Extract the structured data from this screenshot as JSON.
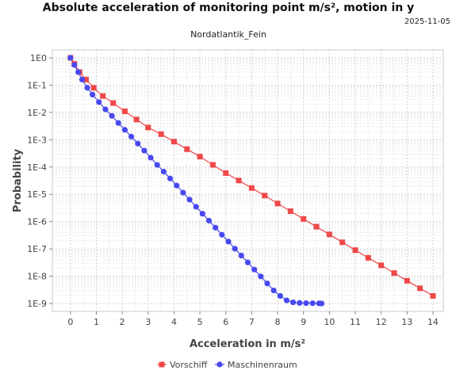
{
  "chart_data": {
    "type": "line",
    "title": "Absolute acceleration of monitoring point m/s², motion in y",
    "date": "2025-11-05",
    "subtitle": "Nordatlantik_Fein",
    "xlabel": "Acceleration in m/s²",
    "ylabel": "Probability",
    "xlim": [
      -0.7,
      14.4
    ],
    "ylim": [
      1e-09,
      1
    ],
    "yscale": "log",
    "x_ticks": [
      "0",
      "1",
      "2",
      "3",
      "4",
      "5",
      "6",
      "7",
      "8",
      "9",
      "10",
      "11",
      "12",
      "13",
      "14"
    ],
    "y_ticks": [
      "1E0",
      "1E-1",
      "1E-2",
      "1E-3",
      "1E-4",
      "1E-5",
      "1E-6",
      "1E-7",
      "1E-8",
      "1E-9"
    ],
    "grid": true,
    "legend_position": "bottom",
    "series": [
      {
        "name": "Vorschiff",
        "color": "#f04848",
        "marker": "square",
        "x": [
          0,
          0.15,
          0.35,
          0.6,
          0.9,
          1.25,
          1.65,
          2.1,
          2.55,
          3.0,
          3.5,
          4.0,
          4.5,
          5.0,
          5.5,
          6.0,
          6.5,
          7.0,
          7.5,
          8.0,
          8.5,
          9.0,
          9.5,
          10.0,
          10.5,
          11.0,
          11.5,
          12.0,
          12.5,
          13.0,
          13.5,
          14.0
        ],
        "y": [
          1.0,
          0.6,
          0.3,
          0.16,
          0.08,
          0.04,
          0.022,
          0.011,
          0.0055,
          0.0028,
          0.0016,
          0.00085,
          0.00045,
          0.00024,
          0.00012,
          6e-05,
          3.2e-05,
          1.7e-05,
          9e-06,
          4.6e-06,
          2.4e-06,
          1.25e-06,
          6.5e-07,
          3.4e-07,
          1.75e-07,
          9e-08,
          4.7e-08,
          2.5e-08,
          1.3e-08,
          6.8e-09,
          3.6e-09,
          1.9e-09
        ]
      },
      {
        "name": "Maschinenraum",
        "color": "#4848f0",
        "marker": "circle",
        "x": [
          0,
          0.15,
          0.3,
          0.45,
          0.65,
          0.85,
          1.1,
          1.35,
          1.6,
          1.85,
          2.1,
          2.35,
          2.6,
          2.85,
          3.1,
          3.35,
          3.6,
          3.85,
          4.1,
          4.35,
          4.6,
          4.85,
          5.1,
          5.35,
          5.6,
          5.85,
          6.1,
          6.35,
          6.6,
          6.85,
          7.1,
          7.35,
          7.6,
          7.85,
          8.1,
          8.35,
          8.6,
          8.85,
          9.1,
          9.35,
          9.6,
          9.7
        ],
        "y": [
          1.0,
          0.55,
          0.3,
          0.16,
          0.08,
          0.045,
          0.024,
          0.013,
          0.0075,
          0.0041,
          0.0023,
          0.0013,
          0.00072,
          0.0004,
          0.00022,
          0.00012,
          6.8e-05,
          3.8e-05,
          2.1e-05,
          1.15e-05,
          6.4e-06,
          3.5e-06,
          1.95e-06,
          1.08e-06,
          6e-07,
          3.3e-07,
          1.85e-07,
          1.02e-07,
          5.7e-08,
          3.2e-08,
          1.75e-08,
          9.8e-09,
          5.4e-09,
          3e-09,
          1.9e-09,
          1.3e-09,
          1.1e-09,
          1.05e-09,
          1.03e-09,
          1.02e-09,
          1.01e-09,
          1e-09
        ]
      }
    ]
  }
}
